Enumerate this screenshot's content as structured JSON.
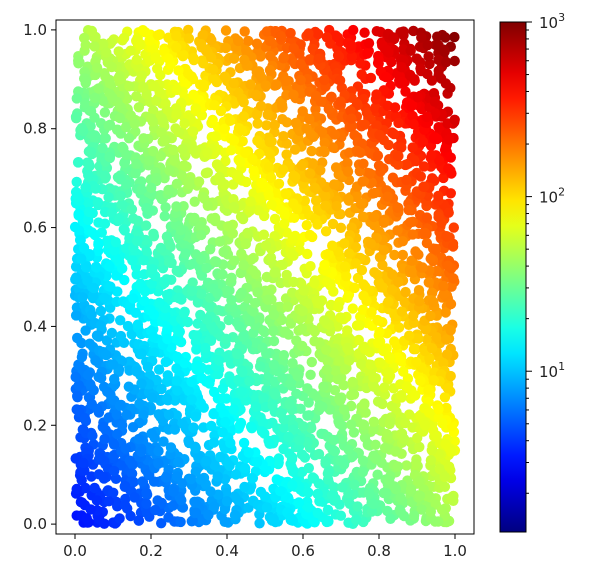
{
  "chart_data": {
    "type": "scatter",
    "title": "",
    "xlabel": "",
    "ylabel": "",
    "xlim": [
      -0.05,
      1.05
    ],
    "ylim": [
      -0.02,
      1.02
    ],
    "x_ticks": [
      "0.0",
      "0.2",
      "0.4",
      "0.6",
      "0.8",
      "1.0"
    ],
    "y_ticks": [
      "0.0",
      "0.2",
      "0.4",
      "0.6",
      "0.8",
      "1.0"
    ],
    "point_domain": {
      "x": [
        0,
        1
      ],
      "y": [
        0,
        1
      ]
    },
    "point_count": 4000,
    "color_value_function": "c = 1 + 2 * 10^(1.35 * (x + y)), log scaled",
    "colormap": "jet",
    "colorbar": {
      "scale": "log",
      "range": [
        1.2,
        1000
      ],
      "major_tick_labels": [
        {
          "value": 10,
          "base": "10",
          "exp": "1"
        },
        {
          "value": 100,
          "base": "10",
          "exp": "2"
        },
        {
          "value": 1000,
          "base": "10",
          "exp": "3"
        }
      ],
      "minor_tick_values": [
        2,
        3,
        4,
        5,
        6,
        7,
        8,
        9,
        20,
        30,
        40,
        50,
        60,
        70,
        80,
        90,
        200,
        300,
        400,
        500,
        600,
        700,
        800,
        900
      ]
    },
    "grid": false,
    "legend": "none"
  }
}
